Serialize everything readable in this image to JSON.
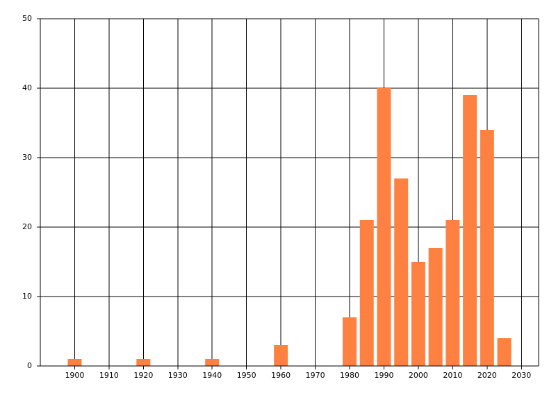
{
  "chart_data": {
    "type": "bar",
    "x": [
      1900,
      1920,
      1940,
      1960,
      1980,
      1985,
      1990,
      1995,
      2000,
      2005,
      2010,
      2015,
      2020,
      2025
    ],
    "values": [
      1,
      1,
      1,
      3,
      7,
      21,
      40,
      27,
      15,
      17,
      21,
      39,
      34,
      4
    ],
    "color": "#ff8142",
    "xlim": [
      1890,
      2035
    ],
    "xticks": [
      1900,
      1910,
      1920,
      1930,
      1940,
      1950,
      1960,
      1970,
      1980,
      1990,
      2000,
      2010,
      2020,
      2030
    ],
    "ylim": [
      0,
      50
    ],
    "yticks": [
      0,
      10,
      20,
      30,
      40,
      50
    ],
    "grid": true
  }
}
